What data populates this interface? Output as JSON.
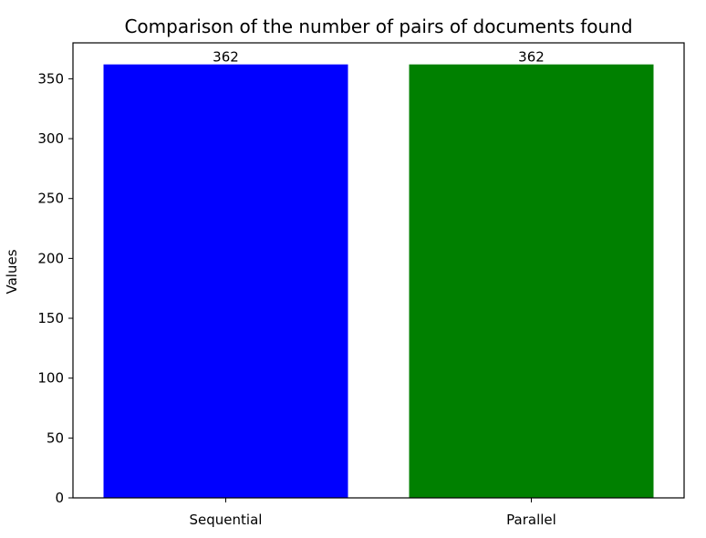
{
  "chart_data": {
    "type": "bar",
    "title": "Comparison of the number of pairs of documents found",
    "xlabel": "",
    "ylabel": "Values",
    "categories": [
      "Sequential",
      "Parallel"
    ],
    "values": [
      362,
      362
    ],
    "data_labels": [
      "362",
      "362"
    ],
    "colors": [
      "#0000ff",
      "#008000"
    ],
    "ylim": [
      0,
      380
    ],
    "yticks": [
      0,
      50,
      100,
      150,
      200,
      250,
      300,
      350
    ],
    "ytick_labels": [
      "0",
      "50",
      "100",
      "150",
      "200",
      "250",
      "300",
      "350"
    ],
    "grid": false,
    "legend": "none"
  }
}
